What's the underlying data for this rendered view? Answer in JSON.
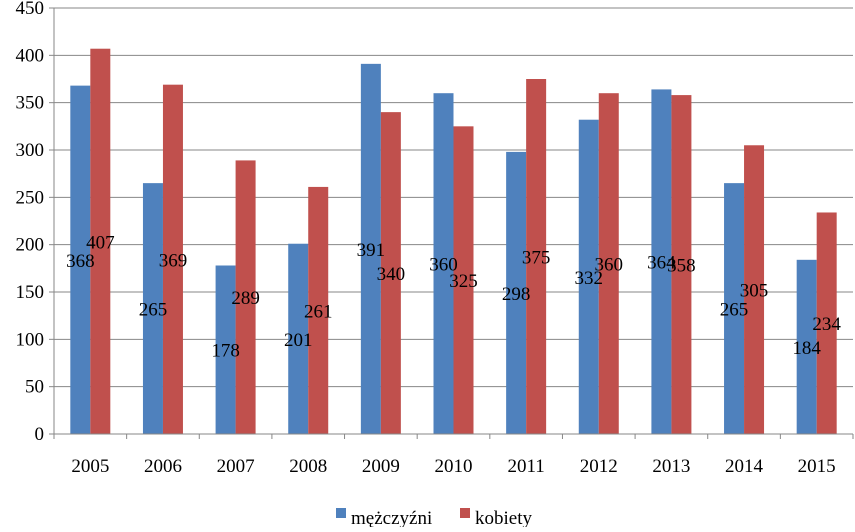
{
  "chart_data": {
    "type": "bar",
    "categories": [
      "2005",
      "2006",
      "2007",
      "2008",
      "2009",
      "2010",
      "2011",
      "2012",
      "2013",
      "2014",
      "2015"
    ],
    "series": [
      {
        "name": "mężczyźni",
        "color": "#4F81BD",
        "values": [
          368,
          265,
          178,
          201,
          391,
          360,
          298,
          332,
          364,
          265,
          184
        ]
      },
      {
        "name": "kobiety",
        "color": "#C0504D",
        "values": [
          407,
          369,
          289,
          261,
          340,
          325,
          375,
          360,
          358,
          305,
          234
        ]
      }
    ],
    "y_ticks": [
      "0",
      "50",
      "100",
      "150",
      "200",
      "250",
      "300",
      "350",
      "400",
      "450"
    ],
    "ylim": [
      0,
      450
    ],
    "grid": true,
    "legend": "bottom"
  }
}
